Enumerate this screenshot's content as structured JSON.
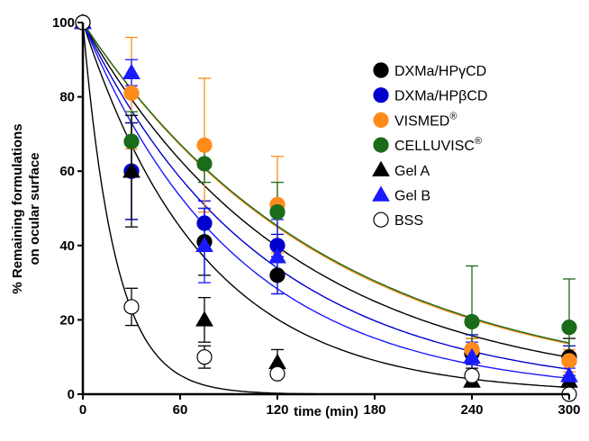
{
  "chart_data": {
    "type": "scatter",
    "xlabel": "time (min)",
    "ylabel_lines": [
      "% Remaining formulations",
      "on ocular surface"
    ],
    "xlim": [
      0,
      300
    ],
    "ylim": [
      0,
      100
    ],
    "x_axis_ticks": [
      0,
      60,
      120,
      180,
      240,
      300
    ],
    "y_axis_ticks": [
      0,
      20,
      40,
      60,
      80,
      100
    ],
    "x_tick_labels": [
      "0",
      "60",
      "120",
      "180",
      "240",
      "300"
    ],
    "y_tick_labels": [
      "0",
      "20",
      "40",
      "60",
      "80",
      "100"
    ],
    "legend_position": "right",
    "grid": false,
    "series": [
      {
        "name": "DXMa/HPγCD",
        "superscript": "",
        "marker": "circle",
        "color": "#000000",
        "fill": "#000000",
        "curve_color": "#000000",
        "x": [
          0,
          30,
          75,
          120,
          240,
          300
        ],
        "y": [
          100,
          60,
          41,
          32,
          11,
          10
        ],
        "err": [
          0,
          13,
          9,
          5,
          4,
          5
        ],
        "half_life": 90
      },
      {
        "name": "DXMa/HPβCD",
        "superscript": "",
        "marker": "circle",
        "color": "#0000cc",
        "fill": "#0000cc",
        "curve_color": "#0000cc",
        "x": [
          0,
          30,
          75,
          120,
          240,
          300
        ],
        "y": [
          100,
          60,
          46,
          40,
          12,
          9
        ],
        "err": [
          0,
          13,
          6,
          3,
          4,
          4
        ],
        "half_life": 77
      },
      {
        "name": "VISMED",
        "superscript": "®",
        "marker": "circle",
        "color": "#ff8c1a",
        "fill": "#ff8c1a",
        "curve_color": "#ff8c1a",
        "x": [
          0,
          30,
          75,
          120,
          240,
          300
        ],
        "y": [
          100,
          81,
          67,
          51,
          12,
          9
        ],
        "err": [
          0,
          15,
          18,
          13,
          3,
          3
        ],
        "half_life": 104
      },
      {
        "name": "CELLUVISC",
        "superscript": "®",
        "marker": "circle",
        "color": "#1a6b1a",
        "fill": "#1a6b1a",
        "curve_color": "#1a6b1a",
        "x": [
          0,
          30,
          75,
          120,
          240,
          300
        ],
        "y": [
          100,
          68,
          62,
          49,
          19.5,
          18
        ],
        "err": [
          0,
          8,
          5,
          8,
          15,
          13
        ],
        "half_life": 105
      },
      {
        "name": "Gel A",
        "superscript": "",
        "marker": "triangle",
        "color": "#000000",
        "fill": "#000000",
        "curve_color": "#000000",
        "x": [
          0,
          30,
          75,
          120,
          240,
          300
        ],
        "y": [
          100,
          60,
          20,
          8.5,
          3.5,
          3.5
        ],
        "err": [
          0,
          15,
          6,
          3.5,
          1,
          1
        ],
        "half_life": 52
      },
      {
        "name": "Gel B",
        "superscript": "",
        "marker": "triangle",
        "color": "#1a1aff",
        "fill": "#1a1aff",
        "curve_color": "#1a1aff",
        "x": [
          0,
          30,
          75,
          120,
          240,
          300
        ],
        "y": [
          100,
          86.5,
          40,
          37,
          10,
          5
        ],
        "err": [
          0,
          3.5,
          10,
          10,
          4,
          2
        ],
        "half_life": 66
      },
      {
        "name": "BSS",
        "superscript": "",
        "marker": "circle-open",
        "color": "#000000",
        "fill": "#ffffff",
        "curve_color": "#000000",
        "x": [
          0,
          30,
          75,
          120,
          240,
          300
        ],
        "y": [
          100,
          23.5,
          10,
          5.5,
          5,
          0
        ],
        "err": [
          0,
          5,
          3,
          1,
          1,
          0
        ],
        "half_life": 14
      }
    ]
  }
}
